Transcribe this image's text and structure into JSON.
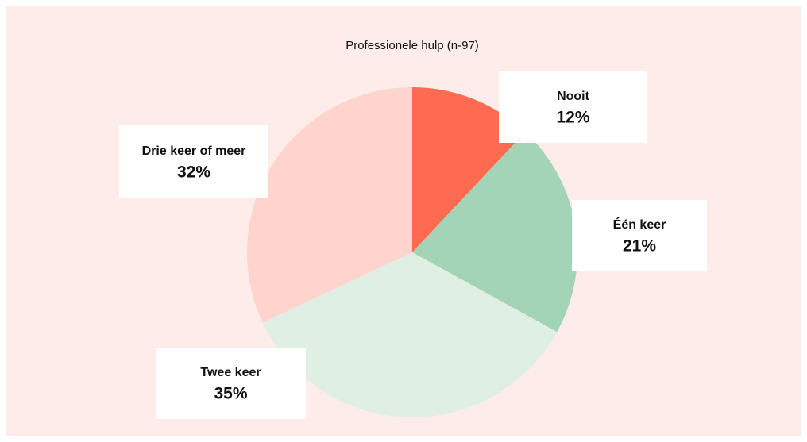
{
  "chart_data": {
    "type": "pie",
    "title": "Professionele hulp (n-97)",
    "categories": [
      "Nooit",
      "Één keer",
      "Twee keer",
      "Drie keer of meer"
    ],
    "values": [
      12,
      21,
      35,
      32
    ],
    "value_labels": [
      "12%",
      "21%",
      "35%",
      "32%"
    ],
    "colors": [
      "#ff6b50",
      "#a3d4b8",
      "#dfefe4",
      "#ffd4cd"
    ]
  }
}
